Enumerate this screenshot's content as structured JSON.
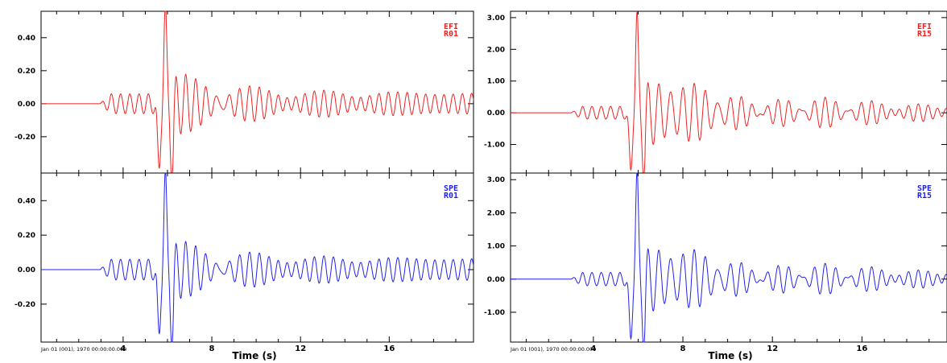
{
  "figure": {
    "date_stamp": "Jan 01 (001), 1970 00:00:00.000",
    "xlabel": "Time (s)"
  },
  "colors": {
    "efi": "#ee2222",
    "spe": "#2222ee",
    "axis": "#000000",
    "background": "#ffffff"
  },
  "chart_data": [
    {
      "type": "line",
      "id": "R01",
      "x_ticks": [
        4,
        8,
        12,
        16
      ],
      "xlim": [
        0.3,
        19.8
      ],
      "panels": [
        {
          "series": [
            {
              "name": "EFI",
              "station": "R01",
              "color": "#ee2222",
              "onset": 2.95,
              "main_t": 5.9,
              "main_amp": 0.58,
              "neg_amp": -0.42,
              "pre_amp": 0.06,
              "coda_amp": 0.16,
              "decay": 4.2,
              "freq": 2.1
            }
          ],
          "ylim": [
            -0.42,
            0.56
          ],
          "y_ticks": [
            -0.2,
            0.0,
            0.2,
            0.4
          ],
          "y_tick_labels": [
            "-0.20",
            "0.00",
            "0.20",
            "0.40"
          ]
        },
        {
          "series": [
            {
              "name": "SPE",
              "station": "R01",
              "color": "#2222ee",
              "onset": 2.95,
              "main_t": 5.9,
              "main_amp": 0.55,
              "neg_amp": -0.4,
              "pre_amp": 0.06,
              "coda_amp": 0.14,
              "decay": 4.2,
              "freq": 2.1
            }
          ],
          "ylim": [
            -0.42,
            0.56
          ],
          "y_ticks": [
            -0.2,
            0.0,
            0.2,
            0.4
          ],
          "y_tick_labels": [
            "-0.20",
            "0.00",
            "0.20",
            "0.40"
          ]
        }
      ]
    },
    {
      "type": "line",
      "id": "R15",
      "x_ticks": [
        4,
        8,
        12,
        16
      ],
      "xlim": [
        0.3,
        19.8
      ],
      "panels": [
        {
          "series": [
            {
              "name": "EFI",
              "station": "R15",
              "color": "#ee2222",
              "onset": 3.0,
              "main_t": 5.95,
              "main_amp": 3.1,
              "neg_amp": -1.9,
              "pre_amp": 0.2,
              "coda_amp": 1.05,
              "decay": 6.5,
              "freq": 1.9
            }
          ],
          "ylim": [
            -1.9,
            3.2
          ],
          "y_ticks": [
            -1.0,
            0.0,
            1.0,
            2.0,
            3.0
          ],
          "y_tick_labels": [
            "-1.00",
            "0.00",
            "1.00",
            "2.00",
            "3.00"
          ]
        },
        {
          "series": [
            {
              "name": "SPE",
              "station": "R15",
              "color": "#2222ee",
              "onset": 3.0,
              "main_t": 5.95,
              "main_amp": 3.2,
              "neg_amp": -1.9,
              "pre_amp": 0.2,
              "coda_amp": 1.0,
              "decay": 6.5,
              "freq": 1.9
            }
          ],
          "ylim": [
            -1.9,
            3.2
          ],
          "y_ticks": [
            -1.0,
            0.0,
            1.0,
            2.0,
            3.0
          ],
          "y_tick_labels": [
            "-1.00",
            "0.00",
            "1.00",
            "2.00",
            "3.00"
          ]
        }
      ]
    }
  ]
}
